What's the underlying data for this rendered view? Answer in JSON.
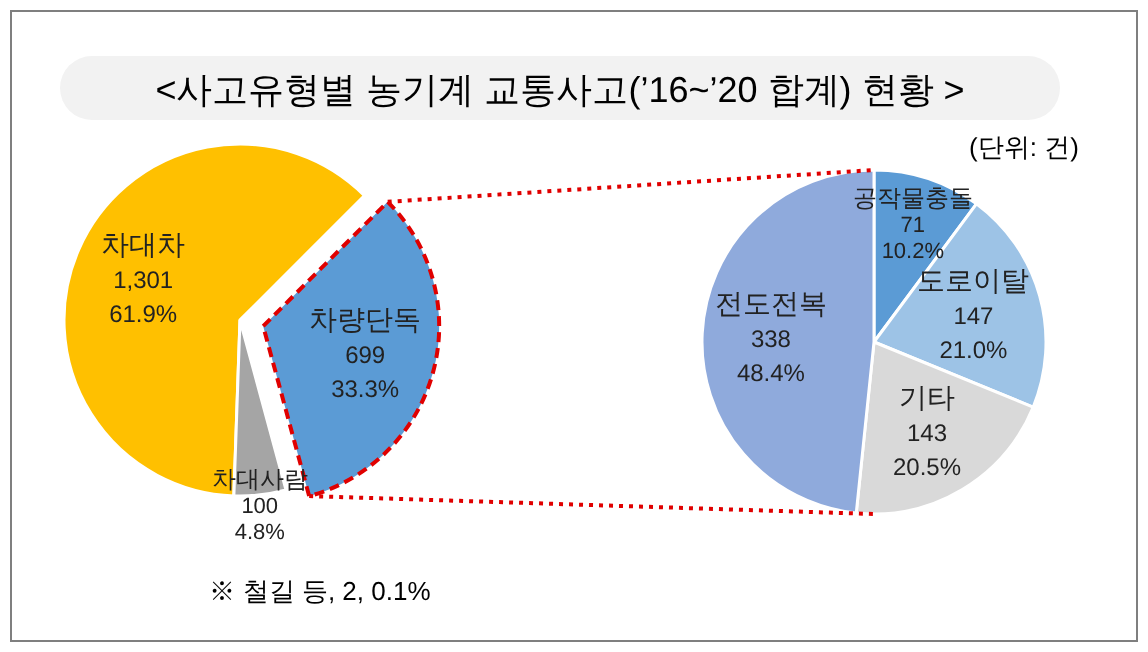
{
  "chart_data": [
    {
      "type": "pie",
      "title": "<사고유형별 농기계 교통사고(’16~’20 합계) 현황 >",
      "categories": [
        "차대차",
        "차량단독",
        "차대사람"
      ],
      "values": [
        1301,
        699,
        100
      ],
      "colors": [
        "#ffc000",
        "#5b9bd5",
        "#a5a5a5"
      ],
      "value_labels": [
        "1,301\n61.9%",
        "699\n33.3%",
        "100\n4.8%"
      ],
      "annotations": [
        "※ 철길 등, 2, 0.1%"
      ]
    },
    {
      "type": "pie",
      "categories": [
        "공작물충돌",
        "도로이탈",
        "기타",
        "전도전복"
      ],
      "values": [
        71,
        147,
        143,
        338
      ],
      "colors": [
        "#5b9bd5",
        "#9dc3e6",
        "#d9d9d9",
        "#8faadc"
      ],
      "value_labels": [
        "71\n10.2%",
        "147\n21.0%",
        "143\n20.5%",
        "338\n48.4%"
      ],
      "annotations": [
        "(단위: 건)"
      ]
    }
  ]
}
